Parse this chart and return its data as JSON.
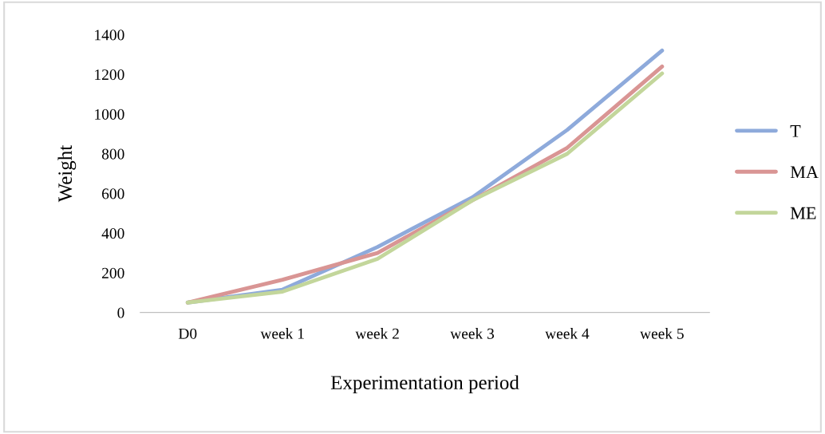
{
  "chart_data": {
    "type": "line",
    "xlabel": "Experimentation period",
    "ylabel": "Weight",
    "categories": [
      "D0",
      "week 1",
      "week 2",
      "week 3",
      "week 4",
      "week 5"
    ],
    "series": [
      {
        "name": "T",
        "color": "#8eaadb",
        "values": [
          50,
          115,
          330,
          580,
          920,
          1320
        ]
      },
      {
        "name": "MA",
        "color": "#d99594",
        "values": [
          50,
          165,
          300,
          565,
          830,
          1240
        ]
      },
      {
        "name": "ME",
        "color": "#c3d69b",
        "values": [
          50,
          105,
          270,
          565,
          800,
          1205
        ]
      }
    ],
    "ylim": [
      0,
      1400
    ],
    "yticks": [
      0,
      200,
      400,
      600,
      800,
      1000,
      1200,
      1400
    ],
    "grid": false,
    "legend": "right",
    "marker": "none",
    "line_style": "solid"
  }
}
